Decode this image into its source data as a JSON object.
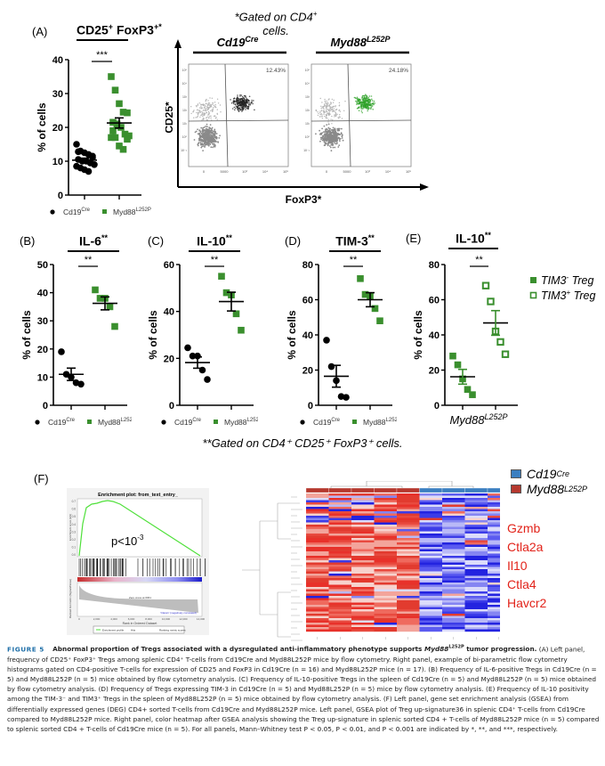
{
  "panels": {
    "A": {
      "letter": "(A)",
      "title": "CD25",
      "title_sup": "+",
      "title2": " FoxP3",
      "title2_sup": "+*",
      "gating_note_line1": "*Gated on CD4",
      "gating_note_sup": "+",
      "gating_note_line2": "cells.",
      "significance": "***",
      "ylabel": "% of cells",
      "yticks": [
        "0",
        "10",
        "20",
        "30",
        "40"
      ],
      "legend": [
        {
          "label": "Cd19",
          "sup": "Cre",
          "marker": "circle",
          "color": "#000000"
        },
        {
          "label": "Myd88",
          "sup": "L252P",
          "marker": "square",
          "color": "#3a8f2e"
        }
      ],
      "flow": {
        "left_title": "Cd19",
        "left_title_sup": "Cre",
        "right_title": "Myd88",
        "right_title_sup": "L252P",
        "left_pct": "12.43%",
        "right_pct": "24.18%",
        "xlabel": "FoxP3*",
        "ylabel": "CD25*",
        "xticks": [
          "0",
          "5000",
          "10³",
          "10⁴",
          "10⁵"
        ],
        "yticks": [
          "10⁵",
          "10⁴",
          "10³",
          "10²",
          "10¹",
          "10⁰",
          "10⁻¹"
        ]
      }
    },
    "B": {
      "letter": "(B)",
      "title": "IL-6",
      "title_sup": "**",
      "significance": "**",
      "ylabel": "% of cells",
      "yticks": [
        "0",
        "10",
        "20",
        "30",
        "40",
        "50"
      ]
    },
    "C": {
      "letter": "(C)",
      "title": "IL-10",
      "title_sup": "**",
      "significance": "**",
      "ylabel": "% of cells",
      "yticks": [
        "0",
        "20",
        "40",
        "60"
      ]
    },
    "D": {
      "letter": "(D)",
      "title": "TIM-3",
      "title_sup": "**",
      "significance": "**",
      "ylabel": "% of cells",
      "yticks": [
        "0",
        "20",
        "40",
        "60",
        "80"
      ]
    },
    "E": {
      "letter": "(E)",
      "title": "IL-10",
      "title_sup": "**",
      "significance": "**",
      "ylabel": "% of cells",
      "yticks": [
        "0",
        "20",
        "40",
        "60",
        "80"
      ],
      "xlabel": "Myd88",
      "xlabel_sup": "L252P",
      "legend": [
        {
          "label": "TIM3",
          "sup": "-",
          "suffix": " Treg",
          "marker": "filled-square"
        },
        {
          "label": "TIM3",
          "sup": "+",
          "suffix": " Treg",
          "marker": "open-square"
        }
      ]
    },
    "BCD_legend": [
      {
        "label": "Cd19",
        "sup": "Cre"
      },
      {
        "label": "Myd88",
        "sup": "L252P"
      }
    ],
    "gating_note2": "**Gated on CD4⁺ CD25⁺ FoxP3⁺ cells.",
    "F": {
      "letter": "(F)",
      "gsea_title": "Enrichment plot: from_text_entry_",
      "gsea_pvalue": "p<10",
      "gsea_pvalue_sup": "-3",
      "gsea_ylabel_top": "Enrichment score (ES)",
      "gsea_ylabel_bottom": "Ranked list metric (Signal2Noise)",
      "gsea_xlabel": "Rank in Ordered Dataset",
      "gsea_es_ticks": [
        "0.7",
        "0.6",
        "0.5",
        "0.4",
        "0.3",
        "0.2",
        "0.1",
        "0.0"
      ],
      "gsea_x_ticks": [
        "0",
        "2,000",
        "4,000",
        "6,000",
        "8,000",
        "10,000",
        "12,000",
        "14,000"
      ],
      "gsea_pos_label": "'Class0' (positively correlated)",
      "gsea_neg_label": "'Class1' (negatively correlated)",
      "gsea_zero_label": "Zero cross at 6961",
      "gsea_legend": [
        "Enrichment profile",
        "Hits",
        "Ranking metric scores"
      ],
      "heatmap_legend": [
        {
          "label": "Cd19",
          "sup": "Cre",
          "color": "#3b7fc0"
        },
        {
          "label": "Myd88",
          "sup": "L252P",
          "color": "#b5382e"
        }
      ],
      "genes": [
        "Gzmb",
        "Ctla2a",
        "Il10",
        "Ctla4",
        "Havcr2"
      ]
    }
  },
  "chart_data": [
    {
      "type": "scatter",
      "panel": "A",
      "title": "CD25+ FoxP3+*",
      "ylabel": "% of cells",
      "ylim": [
        0,
        40
      ],
      "categories": [
        "Cd19Cre",
        "Myd88L252P"
      ],
      "series": [
        {
          "name": "Cd19Cre",
          "values": [
            15,
            13,
            12.5,
            12,
            11,
            10.5,
            10,
            10,
            9.5,
            9,
            8.5,
            8,
            7.5,
            7,
            11.5,
            12.8
          ],
          "mean": 10.3,
          "sem": 0.6
        },
        {
          "name": "Myd88L252P",
          "values": [
            35,
            31,
            27,
            24.5,
            24.3,
            21.5,
            21,
            20,
            18,
            17.5,
            17,
            17,
            14.5,
            13.5,
            16.5,
            19,
            20.5
          ],
          "mean": 21.3,
          "sem": 1.5
        }
      ]
    },
    {
      "type": "scatter",
      "panel": "B",
      "title": "IL-6**",
      "ylabel": "% of cells",
      "ylim": [
        0,
        50
      ],
      "categories": [
        "Cd19Cre",
        "Myd88L252P"
      ],
      "series": [
        {
          "name": "Cd19Cre",
          "values": [
            19,
            11,
            10,
            8,
            7.5
          ],
          "mean": 11,
          "sem": 2.2
        },
        {
          "name": "Myd88L252P",
          "values": [
            41,
            38,
            38,
            35,
            28
          ],
          "mean": 36.2,
          "sem": 2.3
        }
      ]
    },
    {
      "type": "scatter",
      "panel": "C",
      "title": "IL-10**",
      "ylabel": "% of cells",
      "ylim": [
        0,
        60
      ],
      "categories": [
        "Cd19Cre",
        "Myd88L252P"
      ],
      "series": [
        {
          "name": "Cd19Cre",
          "values": [
            24.5,
            21,
            21,
            15,
            11
          ],
          "mean": 18.2,
          "sem": 2.4
        },
        {
          "name": "Myd88L252P",
          "values": [
            55,
            48,
            47,
            39,
            32
          ],
          "mean": 44.2,
          "sem": 4.0
        }
      ]
    },
    {
      "type": "scatter",
      "panel": "D",
      "title": "TIM-3**",
      "ylabel": "% of cells",
      "ylim": [
        0,
        80
      ],
      "categories": [
        "Cd19Cre",
        "Myd88L252P"
      ],
      "series": [
        {
          "name": "Cd19Cre",
          "values": [
            37,
            22,
            14,
            5,
            4.5
          ],
          "mean": 16.5,
          "sem": 6.2
        },
        {
          "name": "Myd88L252P",
          "values": [
            72,
            63,
            62,
            55,
            48
          ],
          "mean": 60,
          "sem": 4.0
        }
      ]
    },
    {
      "type": "scatter",
      "panel": "E",
      "title": "IL-10**",
      "ylabel": "% of cells",
      "ylim": [
        0,
        80
      ],
      "xlabel": "Myd88L252P",
      "categories": [
        "TIM3- Treg",
        "TIM3+ Treg"
      ],
      "series": [
        {
          "name": "TIM3- Treg",
          "values": [
            28,
            23,
            15,
            9,
            6
          ],
          "mean": 16.2,
          "sem": 4.2
        },
        {
          "name": "TIM3+ Treg",
          "values": [
            68,
            59,
            42,
            36,
            29
          ],
          "mean": 46.8,
          "sem": 7.0
        }
      ]
    }
  ],
  "caption": {
    "fig_label": "FIGURE 5",
    "title_a": "Abnormal proportion of Tregs associated with a dysregulated anti-inflammatory phenotype supports ",
    "title_gene": "Myd88",
    "title_gene_sup": "L252P",
    "title_b": " tumor progression.",
    "body_html_free": [
      "(A) Left panel, frequency of CD25⁺ FoxP3⁺ Tregs among splenic CD4⁺ T-cells from Cd19Cre and Myd88L252P mice by flow cytometry. Right panel, example of bi-parametric flow cytometry histograms gated on CD4-positive T-cells for expression of CD25 and FoxP3 in Cd19Cre (n = 16) and Myd88L252P mice (n = 17).",
      "(B) Frequency of IL-6-positive Tregs in Cd19Cre (n = 5) and Myd88L252P (n = 5) mice obtained by flow cytometry analysis.",
      "(C) Frequency of IL-10-positive Tregs in the spleen of Cd19Cre (n = 5) and Myd88L252P (n = 5) mice obtained by flow cytometry analysis.",
      "(D) Frequency of Tregs expressing TIM-3 in Cd19Cre (n = 5) and Myd88L252P (n = 5) mice by flow cytometry analysis.",
      "(E) Frequency of IL-10 positivity among the TIM-3⁻ and TIM3⁺ Tregs in the spleen of Myd88L252P (n = 5) mice obtained by flow cytometry analysis.",
      "(F) Left panel, gene set enrichment analysis (GSEA) from differentially expressed genes (DEG) CD4+ sorted T-cells from Cd19Cre and Myd88L252P mice. Left panel, GSEA plot of Treg up-signature36 in splenic CD4⁺ T-cells from Cd19Cre compared to Myd88L252P mice. Right panel, color heatmap after GSEA analysis showing the Treg up-signature in splenic sorted CD4 + T-cells of Myd88L252P mice (n = 5) compared to splenic sorted CD4 + T-cells of Cd19Cre mice (n = 5). For all panels, Mann–Whitney test P < 0.05, P < 0.01, and P < 0.001 are indicated by *, **, and ***, respectively."
    ]
  }
}
